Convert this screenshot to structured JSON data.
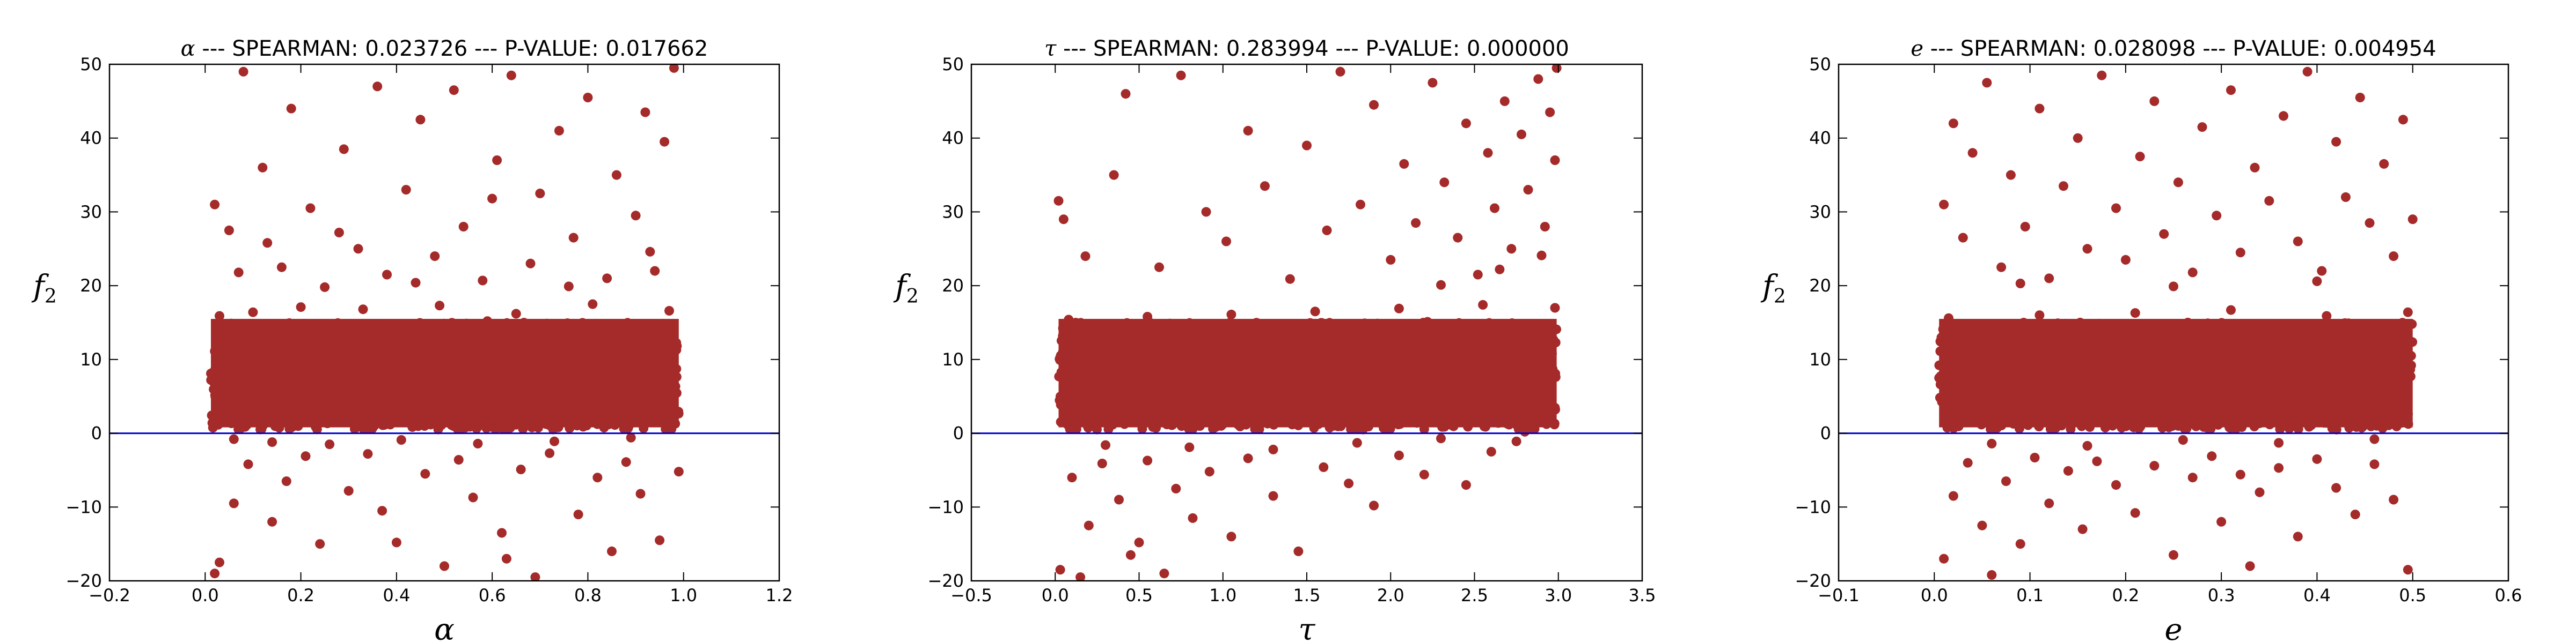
{
  "figure": {
    "background": "#ffffff",
    "marker_color": "#a52a2a",
    "hline_color": "#0000cc"
  },
  "chart_data": [
    {
      "type": "scatter",
      "title_symbol": "α",
      "title_text": " --- SPEARMAN: 0.023726 --- P-VALUE: 0.017662",
      "xlabel": "α",
      "ylabel": "f",
      "ylabel_sub": "2",
      "xlim": [
        -0.2,
        1.2
      ],
      "ylim": [
        -20,
        50
      ],
      "xticks": [
        -0.2,
        0.0,
        0.2,
        0.4,
        0.6,
        0.8,
        1.0,
        1.2
      ],
      "xtick_labels": [
        "−0.2",
        "0.0",
        "0.2",
        "0.4",
        "0.6",
        "0.8",
        "1.0",
        "1.2"
      ],
      "yticks": [
        -20,
        -10,
        0,
        10,
        20,
        30,
        40,
        50
      ],
      "ytick_labels": [
        "−20",
        "−10",
        "0",
        "10",
        "20",
        "30",
        "40",
        "50"
      ],
      "hline_y": 0,
      "grid": false,
      "points": [
        [
          0.012,
          8.1
        ],
        [
          0.045,
          3.2
        ],
        [
          0.08,
          12.4
        ],
        [
          0.11,
          6.7
        ],
        [
          0.15,
          1.9
        ],
        [
          0.19,
          14.8
        ],
        [
          0.23,
          9.3
        ],
        [
          0.27,
          4.1
        ],
        [
          0.31,
          11.6
        ],
        [
          0.35,
          7.2
        ],
        [
          0.39,
          2.5
        ],
        [
          0.43,
          13.1
        ],
        [
          0.47,
          5.8
        ],
        [
          0.51,
          10.2
        ],
        [
          0.55,
          3.7
        ],
        [
          0.59,
          15.2
        ],
        [
          0.63,
          8.8
        ],
        [
          0.67,
          1.4
        ],
        [
          0.71,
          12.9
        ],
        [
          0.75,
          6.1
        ],
        [
          0.79,
          9.7
        ],
        [
          0.83,
          4.6
        ],
        [
          0.87,
          14.1
        ],
        [
          0.91,
          7.9
        ],
        [
          0.95,
          2.2
        ],
        [
          0.985,
          11.3
        ],
        [
          0.03,
          15.9
        ],
        [
          0.06,
          -0.8
        ],
        [
          0.1,
          16.4
        ],
        [
          0.14,
          -1.2
        ],
        [
          0.2,
          17.1
        ],
        [
          0.26,
          -1.5
        ],
        [
          0.33,
          16.8
        ],
        [
          0.41,
          -0.9
        ],
        [
          0.49,
          17.3
        ],
        [
          0.57,
          -1.4
        ],
        [
          0.65,
          16.2
        ],
        [
          0.73,
          -1.1
        ],
        [
          0.81,
          17.5
        ],
        [
          0.89,
          -0.6
        ],
        [
          0.97,
          16.6
        ],
        [
          0.02,
          31.0
        ],
        [
          0.05,
          27.5
        ],
        [
          0.08,
          49.0
        ],
        [
          0.12,
          36.0
        ],
        [
          0.16,
          22.5
        ],
        [
          0.18,
          44.0
        ],
        [
          0.22,
          30.5
        ],
        [
          0.25,
          19.8
        ],
        [
          0.29,
          38.5
        ],
        [
          0.32,
          25.0
        ],
        [
          0.36,
          47.0
        ],
        [
          0.38,
          21.5
        ],
        [
          0.42,
          33.0
        ],
        [
          0.45,
          42.5
        ],
        [
          0.48,
          24.0
        ],
        [
          0.52,
          46.5
        ],
        [
          0.54,
          28.0
        ],
        [
          0.58,
          20.7
        ],
        [
          0.61,
          37.0
        ],
        [
          0.64,
          48.5
        ],
        [
          0.68,
          23.0
        ],
        [
          0.7,
          32.5
        ],
        [
          0.74,
          41.0
        ],
        [
          0.77,
          26.5
        ],
        [
          0.8,
          45.5
        ],
        [
          0.84,
          21.0
        ],
        [
          0.86,
          35.0
        ],
        [
          0.9,
          29.5
        ],
        [
          0.92,
          43.5
        ],
        [
          0.94,
          22.0
        ],
        [
          0.96,
          39.5
        ],
        [
          0.98,
          49.5
        ],
        [
          0.07,
          21.8
        ],
        [
          0.13,
          25.8
        ],
        [
          0.28,
          27.2
        ],
        [
          0.44,
          20.4
        ],
        [
          0.6,
          31.8
        ],
        [
          0.76,
          19.9
        ],
        [
          0.93,
          24.6
        ],
        [
          0.03,
          -17.5
        ],
        [
          0.06,
          -9.5
        ],
        [
          0.09,
          -4.2
        ],
        [
          0.14,
          -12.0
        ],
        [
          0.17,
          -6.5
        ],
        [
          0.21,
          -3.1
        ],
        [
          0.24,
          -15.0
        ],
        [
          0.3,
          -7.8
        ],
        [
          0.34,
          -2.8
        ],
        [
          0.37,
          -10.5
        ],
        [
          0.46,
          -5.5
        ],
        [
          0.5,
          -18.0
        ],
        [
          0.53,
          -3.6
        ],
        [
          0.56,
          -8.7
        ],
        [
          0.62,
          -13.5
        ],
        [
          0.66,
          -4.9
        ],
        [
          0.69,
          -19.5
        ],
        [
          0.72,
          -2.7
        ],
        [
          0.78,
          -11.0
        ],
        [
          0.82,
          -6.0
        ],
        [
          0.85,
          -16.0
        ],
        [
          0.88,
          -3.9
        ],
        [
          0.91,
          -8.2
        ],
        [
          0.95,
          -14.5
        ],
        [
          0.99,
          -5.2
        ],
        [
          0.02,
          -19.0
        ],
        [
          0.4,
          -14.8
        ],
        [
          0.63,
          -17.0
        ]
      ]
    },
    {
      "type": "scatter",
      "title_symbol": "τ",
      "title_text": " --- SPEARMAN: 0.283994 --- P-VALUE: 0.000000",
      "xlabel": "τ",
      "ylabel": "f",
      "ylabel_sub": "2",
      "xlim": [
        -0.5,
        3.5
      ],
      "ylim": [
        -20,
        50
      ],
      "xticks": [
        -0.5,
        0.0,
        0.5,
        1.0,
        1.5,
        2.0,
        2.5,
        3.0,
        3.5
      ],
      "xtick_labels": [
        "−0.5",
        "0.0",
        "0.5",
        "1.0",
        "1.5",
        "2.0",
        "2.5",
        "3.0",
        "3.5"
      ],
      "yticks": [
        -20,
        -10,
        0,
        10,
        20,
        30,
        40,
        50
      ],
      "ytick_labels": [
        "−20",
        "−10",
        "0",
        "10",
        "20",
        "30",
        "40",
        "50"
      ],
      "hline_y": 0,
      "grid": false,
      "points": [
        [
          0.03,
          4.5
        ],
        [
          0.12,
          9.8
        ],
        [
          0.22,
          1.6
        ],
        [
          0.35,
          13.2
        ],
        [
          0.48,
          6.4
        ],
        [
          0.6,
          11.1
        ],
        [
          0.72,
          3.3
        ],
        [
          0.85,
          14.6
        ],
        [
          0.98,
          7.7
        ],
        [
          1.1,
          2.4
        ],
        [
          1.22,
          12.3
        ],
        [
          1.35,
          5.9
        ],
        [
          1.48,
          9.1
        ],
        [
          1.6,
          1.8
        ],
        [
          1.72,
          13.9
        ],
        [
          1.85,
          7.2
        ],
        [
          1.98,
          10.6
        ],
        [
          2.1,
          3.8
        ],
        [
          2.22,
          15.1
        ],
        [
          2.35,
          8.4
        ],
        [
          2.48,
          11.9
        ],
        [
          2.6,
          2.9
        ],
        [
          2.72,
          14.2
        ],
        [
          2.85,
          6.8
        ],
        [
          2.97,
          12.7
        ],
        [
          0.08,
          15.4
        ],
        [
          0.3,
          -1.6
        ],
        [
          0.55,
          15.8
        ],
        [
          0.8,
          -1.9
        ],
        [
          1.05,
          16.1
        ],
        [
          1.3,
          -2.2
        ],
        [
          1.55,
          16.5
        ],
        [
          1.8,
          -1.3
        ],
        [
          2.05,
          16.9
        ],
        [
          2.3,
          -0.7
        ],
        [
          2.55,
          17.4
        ],
        [
          2.8,
          0.2
        ],
        [
          2.98,
          17.0
        ],
        [
          0.02,
          31.5
        ],
        [
          0.05,
          29.0
        ],
        [
          0.18,
          24.0
        ],
        [
          0.35,
          35.0
        ],
        [
          0.42,
          46.0
        ],
        [
          0.62,
          22.5
        ],
        [
          0.75,
          48.5
        ],
        [
          0.9,
          30.0
        ],
        [
          1.02,
          26.0
        ],
        [
          1.15,
          41.0
        ],
        [
          1.25,
          33.5
        ],
        [
          1.4,
          20.9
        ],
        [
          1.5,
          39.0
        ],
        [
          1.62,
          27.5
        ],
        [
          1.7,
          49.0
        ],
        [
          1.82,
          31.0
        ],
        [
          1.9,
          44.5
        ],
        [
          2.0,
          23.5
        ],
        [
          2.08,
          36.5
        ],
        [
          2.15,
          28.5
        ],
        [
          2.25,
          47.5
        ],
        [
          2.32,
          34.0
        ],
        [
          2.4,
          26.5
        ],
        [
          2.45,
          42.0
        ],
        [
          2.52,
          21.5
        ],
        [
          2.58,
          38.0
        ],
        [
          2.62,
          30.5
        ],
        [
          2.68,
          45.0
        ],
        [
          2.72,
          25.0
        ],
        [
          2.78,
          40.5
        ],
        [
          2.82,
          33.0
        ],
        [
          2.88,
          48.0
        ],
        [
          2.92,
          28.0
        ],
        [
          2.95,
          43.5
        ],
        [
          2.98,
          37.0
        ],
        [
          2.99,
          49.5
        ],
        [
          2.3,
          20.1
        ],
        [
          2.65,
          22.2
        ],
        [
          2.9,
          24.1
        ],
        [
          0.03,
          -18.5
        ],
        [
          0.1,
          -6.0
        ],
        [
          0.2,
          -12.5
        ],
        [
          0.28,
          -4.1
        ],
        [
          0.38,
          -9.0
        ],
        [
          0.45,
          -16.5
        ],
        [
          0.55,
          -3.7
        ],
        [
          0.65,
          -19.0
        ],
        [
          0.72,
          -7.5
        ],
        [
          0.82,
          -11.5
        ],
        [
          0.92,
          -5.2
        ],
        [
          1.05,
          -14.0
        ],
        [
          1.15,
          -3.4
        ],
        [
          1.3,
          -8.5
        ],
        [
          1.45,
          -16.0
        ],
        [
          1.6,
          -4.6
        ],
        [
          1.75,
          -6.8
        ],
        [
          1.9,
          -9.8
        ],
        [
          2.05,
          -3.0
        ],
        [
          2.2,
          -5.6
        ],
        [
          2.45,
          -7.0
        ],
        [
          0.15,
          -19.5
        ],
        [
          0.5,
          -14.8
        ],
        [
          2.6,
          -2.5
        ],
        [
          2.75,
          -1.1
        ]
      ]
    },
    {
      "type": "scatter",
      "title_symbol": "e",
      "title_text": " --- SPEARMAN: 0.028098 --- P-VALUE: 0.004954",
      "xlabel": "e",
      "ylabel": "f",
      "ylabel_sub": "2",
      "xlim": [
        -0.1,
        0.6
      ],
      "ylim": [
        -20,
        50
      ],
      "xticks": [
        -0.1,
        0.0,
        0.1,
        0.2,
        0.3,
        0.4,
        0.5,
        0.6
      ],
      "xtick_labels": [
        "−0.1",
        "0.0",
        "0.1",
        "0.2",
        "0.3",
        "0.4",
        "0.5",
        "0.6"
      ],
      "yticks": [
        -20,
        -10,
        0,
        10,
        20,
        30,
        40,
        50
      ],
      "ytick_labels": [
        "−20",
        "−10",
        "0",
        "10",
        "20",
        "30",
        "40",
        "50"
      ],
      "hline_y": 0,
      "grid": false,
      "points": [
        [
          0.005,
          7.5
        ],
        [
          0.025,
          2.8
        ],
        [
          0.045,
          12.1
        ],
        [
          0.065,
          5.4
        ],
        [
          0.085,
          14.3
        ],
        [
          0.105,
          8.9
        ],
        [
          0.125,
          1.7
        ],
        [
          0.145,
          11.2
        ],
        [
          0.165,
          6.6
        ],
        [
          0.185,
          13.5
        ],
        [
          0.205,
          3.9
        ],
        [
          0.225,
          10.4
        ],
        [
          0.245,
          7.1
        ],
        [
          0.265,
          15.0
        ],
        [
          0.285,
          2.3
        ],
        [
          0.305,
          12.8
        ],
        [
          0.325,
          5.7
        ],
        [
          0.345,
          9.6
        ],
        [
          0.365,
          1.5
        ],
        [
          0.385,
          14.0
        ],
        [
          0.405,
          8.2
        ],
        [
          0.425,
          3.4
        ],
        [
          0.445,
          11.7
        ],
        [
          0.465,
          6.2
        ],
        [
          0.49,
          13.8
        ],
        [
          0.015,
          15.6
        ],
        [
          0.06,
          -1.4
        ],
        [
          0.11,
          16.0
        ],
        [
          0.16,
          -1.7
        ],
        [
          0.21,
          16.3
        ],
        [
          0.26,
          -0.9
        ],
        [
          0.31,
          16.7
        ],
        [
          0.36,
          -1.3
        ],
        [
          0.41,
          15.9
        ],
        [
          0.46,
          -0.8
        ],
        [
          0.495,
          16.4
        ],
        [
          0.01,
          31.0
        ],
        [
          0.02,
          42.0
        ],
        [
          0.03,
          26.5
        ],
        [
          0.04,
          38.0
        ],
        [
          0.055,
          47.5
        ],
        [
          0.07,
          22.5
        ],
        [
          0.08,
          35.0
        ],
        [
          0.095,
          28.0
        ],
        [
          0.11,
          44.0
        ],
        [
          0.12,
          21.0
        ],
        [
          0.135,
          33.5
        ],
        [
          0.15,
          40.0
        ],
        [
          0.16,
          25.0
        ],
        [
          0.175,
          48.5
        ],
        [
          0.19,
          30.5
        ],
        [
          0.2,
          23.5
        ],
        [
          0.215,
          37.5
        ],
        [
          0.23,
          45.0
        ],
        [
          0.24,
          27.0
        ],
        [
          0.255,
          34.0
        ],
        [
          0.27,
          21.8
        ],
        [
          0.28,
          41.5
        ],
        [
          0.295,
          29.5
        ],
        [
          0.31,
          46.5
        ],
        [
          0.32,
          24.5
        ],
        [
          0.335,
          36.0
        ],
        [
          0.35,
          31.5
        ],
        [
          0.365,
          43.0
        ],
        [
          0.38,
          26.0
        ],
        [
          0.39,
          49.0
        ],
        [
          0.405,
          22.0
        ],
        [
          0.42,
          39.5
        ],
        [
          0.43,
          32.0
        ],
        [
          0.445,
          45.5
        ],
        [
          0.455,
          28.5
        ],
        [
          0.47,
          36.5
        ],
        [
          0.48,
          24.0
        ],
        [
          0.49,
          42.5
        ],
        [
          0.5,
          29.0
        ],
        [
          0.09,
          20.3
        ],
        [
          0.25,
          19.9
        ],
        [
          0.4,
          20.6
        ],
        [
          0.01,
          -17.0
        ],
        [
          0.02,
          -8.5
        ],
        [
          0.035,
          -4.0
        ],
        [
          0.05,
          -12.5
        ],
        [
          0.075,
          -6.5
        ],
        [
          0.09,
          -15.0
        ],
        [
          0.105,
          -3.3
        ],
        [
          0.12,
          -9.5
        ],
        [
          0.14,
          -5.1
        ],
        [
          0.155,
          -13.0
        ],
        [
          0.17,
          -3.8
        ],
        [
          0.19,
          -7.0
        ],
        [
          0.21,
          -10.8
        ],
        [
          0.23,
          -4.4
        ],
        [
          0.25,
          -16.5
        ],
        [
          0.27,
          -6.0
        ],
        [
          0.29,
          -3.1
        ],
        [
          0.3,
          -12.0
        ],
        [
          0.32,
          -5.6
        ],
        [
          0.34,
          -8.0
        ],
        [
          0.36,
          -4.7
        ],
        [
          0.38,
          -14.0
        ],
        [
          0.4,
          -3.5
        ],
        [
          0.42,
          -7.4
        ],
        [
          0.44,
          -11.0
        ],
        [
          0.46,
          -4.2
        ],
        [
          0.48,
          -9.0
        ],
        [
          0.495,
          -18.5
        ],
        [
          0.06,
          -19.2
        ],
        [
          0.33,
          -18.0
        ]
      ]
    }
  ]
}
